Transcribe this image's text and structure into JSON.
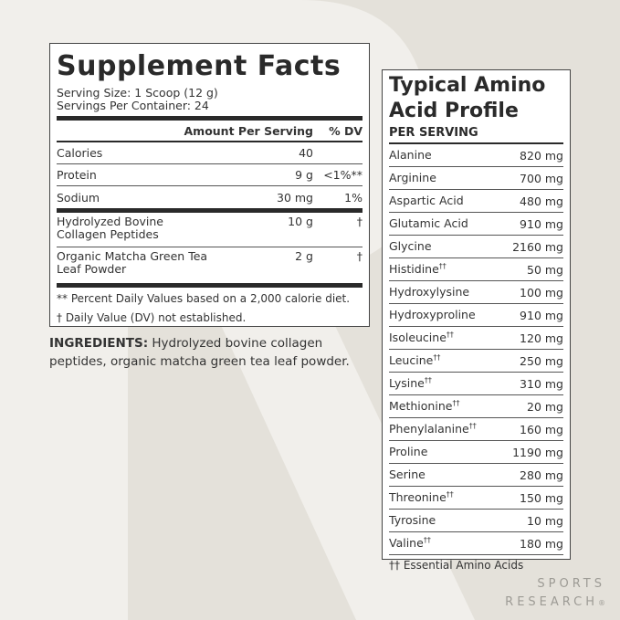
{
  "supplement_facts": {
    "title": "Supplement Facts",
    "serving_size": "Serving Size: 1 Scoop (12 g)",
    "servings_per_container": "Servings Per Container: 24",
    "header": {
      "amount": "Amount Per Serving",
      "dv": "% DV"
    },
    "rows": [
      {
        "name": "Calories",
        "amount": "40",
        "dv": ""
      },
      {
        "name": "Protein",
        "amount": "9 g",
        "dv": "<1%**"
      },
      {
        "name": "Sodium",
        "amount": "30 mg",
        "dv": "1%"
      }
    ],
    "ingredient_rows": [
      {
        "name": "Hydrolyzed Bovine Collagen Peptides",
        "amount": "10 g",
        "dv": "†"
      },
      {
        "name": "Organic Matcha Green Tea Leaf Powder",
        "amount": "2 g",
        "dv": "†"
      }
    ],
    "footnotes": [
      "** Percent Daily Values based on a 2,000 calorie diet.",
      "† Daily Value (DV) not established."
    ]
  },
  "ingredients": {
    "label": "INGREDIENTS:",
    "text": " Hydrolyzed bovine collagen peptides, organic matcha green tea leaf powder."
  },
  "amino_profile": {
    "title": "Typical Amino Acid Profile",
    "subtitle": "PER SERVING",
    "rows": [
      {
        "name": "Alanine",
        "mark": "",
        "amount": "820 mg"
      },
      {
        "name": "Arginine",
        "mark": "",
        "amount": "700 mg"
      },
      {
        "name": "Aspartic Acid",
        "mark": "",
        "amount": "480 mg"
      },
      {
        "name": "Glutamic Acid",
        "mark": "",
        "amount": "910 mg"
      },
      {
        "name": "Glycine",
        "mark": "",
        "amount": "2160 mg"
      },
      {
        "name": "Histidine",
        "mark": "††",
        "amount": "50 mg"
      },
      {
        "name": "Hydroxylysine",
        "mark": "",
        "amount": "100 mg"
      },
      {
        "name": "Hydroxyproline",
        "mark": "",
        "amount": "910 mg"
      },
      {
        "name": "Isoleucine",
        "mark": "††",
        "amount": "120 mg"
      },
      {
        "name": "Leucine",
        "mark": "††",
        "amount": "250 mg"
      },
      {
        "name": "Lysine",
        "mark": "††",
        "amount": "310 mg"
      },
      {
        "name": "Methionine",
        "mark": "††",
        "amount": "20 mg"
      },
      {
        "name": "Phenylalanine",
        "mark": "††",
        "amount": "160 mg"
      },
      {
        "name": "Proline",
        "mark": "",
        "amount": "1190 mg"
      },
      {
        "name": "Serine",
        "mark": "",
        "amount": "280 mg"
      },
      {
        "name": "Threonine",
        "mark": "††",
        "amount": "150 mg"
      },
      {
        "name": "Tyrosine",
        "mark": "",
        "amount": "10 mg"
      },
      {
        "name": "Valine",
        "mark": "††",
        "amount": "180 mg"
      }
    ],
    "footnote": "†† Essential Amino Acids"
  },
  "brand": {
    "line1": "SPORTS",
    "line2": "RESEARCH",
    "mark": "®"
  }
}
